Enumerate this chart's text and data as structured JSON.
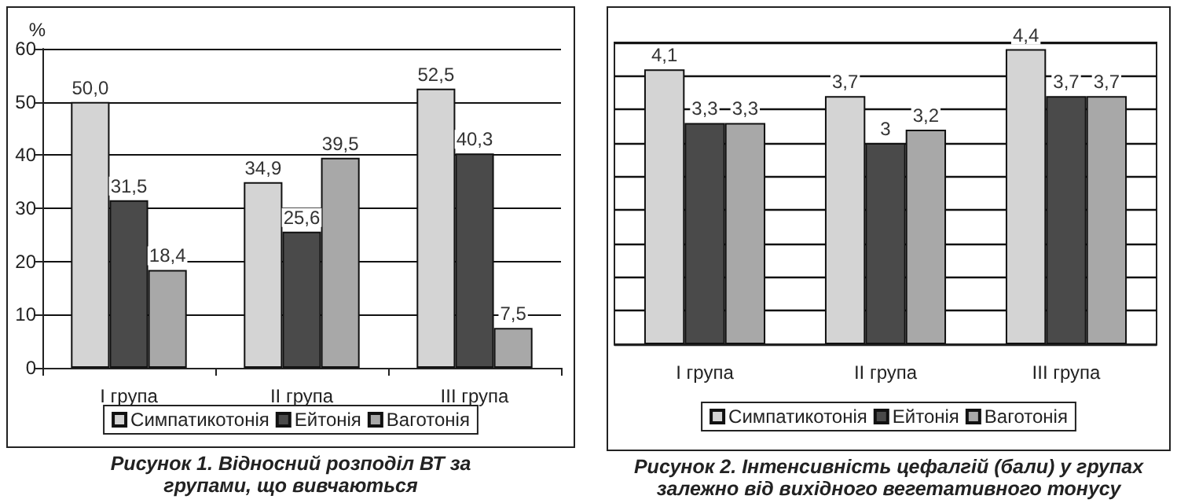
{
  "chart_data": [
    {
      "type": "bar",
      "title": "Рисунок 1. Відносний розподіл ВТ за групами, що вивчаються",
      "ylabel": "%",
      "categories": [
        "I група",
        "II група",
        "III група"
      ],
      "series": [
        {
          "name": "Симпатикотонія",
          "color": "#d4d4d4",
          "values": [
            50.0,
            34.9,
            52.5
          ],
          "value_labels": [
            "50,0",
            "34,9",
            "52,5"
          ]
        },
        {
          "name": "Ейтонія",
          "color": "#4a4a4a",
          "values": [
            31.5,
            25.6,
            40.3
          ],
          "value_labels": [
            "31,5",
            "25,6",
            "40,3"
          ]
        },
        {
          "name": "Ваготонія",
          "color": "#a8a8a8",
          "values": [
            18.4,
            39.5,
            7.5
          ],
          "value_labels": [
            "18,4",
            "39,5",
            "7,5"
          ]
        }
      ],
      "ylim": [
        0,
        60
      ],
      "yticks": [
        0,
        10,
        20,
        30,
        40,
        50,
        60
      ],
      "grid": "y",
      "legend": "bottom"
    },
    {
      "type": "bar",
      "title": "Рисунок 2. Інтенсивність цефалгій (бали) у групах залежно від вихідного вегетативного тонусу",
      "categories": [
        "I група",
        "II група",
        "III група"
      ],
      "series": [
        {
          "name": "Симпатикотонія",
          "color": "#d4d4d4",
          "values": [
            4.1,
            3.7,
            4.4
          ],
          "value_labels": [
            "4,1",
            "3,7",
            "4,4"
          ]
        },
        {
          "name": "Ейтонія",
          "color": "#4a4a4a",
          "values": [
            3.3,
            3,
            3.7
          ],
          "value_labels": [
            "3,3",
            "3",
            "3,7"
          ]
        },
        {
          "name": "Ваготонія",
          "color": "#a8a8a8",
          "values": [
            3.3,
            3.2,
            3.7
          ],
          "value_labels": [
            "3,3",
            "3,2",
            "3,7"
          ]
        }
      ],
      "ylim": [
        0,
        4.5
      ],
      "yticks": [
        {
          "value": 0,
          "label": null
        },
        {
          "value": 0.5,
          "label": null
        },
        {
          "value": 1,
          "label": null
        },
        {
          "value": 1.5,
          "label": null
        },
        {
          "value": 2,
          "label": null
        },
        {
          "value": 2.5,
          "label": null
        },
        {
          "value": 3,
          "label": null
        },
        {
          "value": 3.5,
          "label": null
        },
        {
          "value": 4,
          "label": null
        },
        {
          "value": 4.5,
          "label": null
        }
      ],
      "grid": "y",
      "legend": "bottom",
      "tick_labels": "x"
    }
  ]
}
